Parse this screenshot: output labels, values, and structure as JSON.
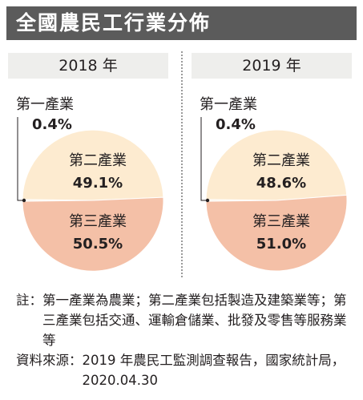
{
  "title": "全國農民工行業分佈",
  "colors": {
    "primary": "#fbf6ea",
    "secondary": "#fdebd0",
    "tertiary": "#f4c0a7",
    "title_bg": "#5b5b5b",
    "year_bg": "#eeeeec"
  },
  "chart_data": [
    {
      "type": "pie",
      "year_label": "2018 年",
      "slices": [
        {
          "label": "第一產業",
          "value": 0.4,
          "value_label": "0.4%"
        },
        {
          "label": "第二產業",
          "value": 49.1,
          "value_label": "49.1%"
        },
        {
          "label": "第三產業",
          "value": 50.5,
          "value_label": "50.5%"
        }
      ]
    },
    {
      "type": "pie",
      "year_label": "2019 年",
      "slices": [
        {
          "label": "第一產業",
          "value": 0.4,
          "value_label": "0.4%"
        },
        {
          "label": "第二產業",
          "value": 48.6,
          "value_label": "48.6%"
        },
        {
          "label": "第三產業",
          "value": 51.0,
          "value_label": "51.0%"
        }
      ]
    }
  ],
  "notes": {
    "note_key": "註：",
    "note_text": "第一產業為農業；第二產業包括製造及建築業等；第三產業包括交通、運輸倉儲業、批發及零售等服務業等",
    "source_key": "資料來源：",
    "source_text": "2019 年農民工監測調查報告，國家統計局，2020.04.30"
  }
}
